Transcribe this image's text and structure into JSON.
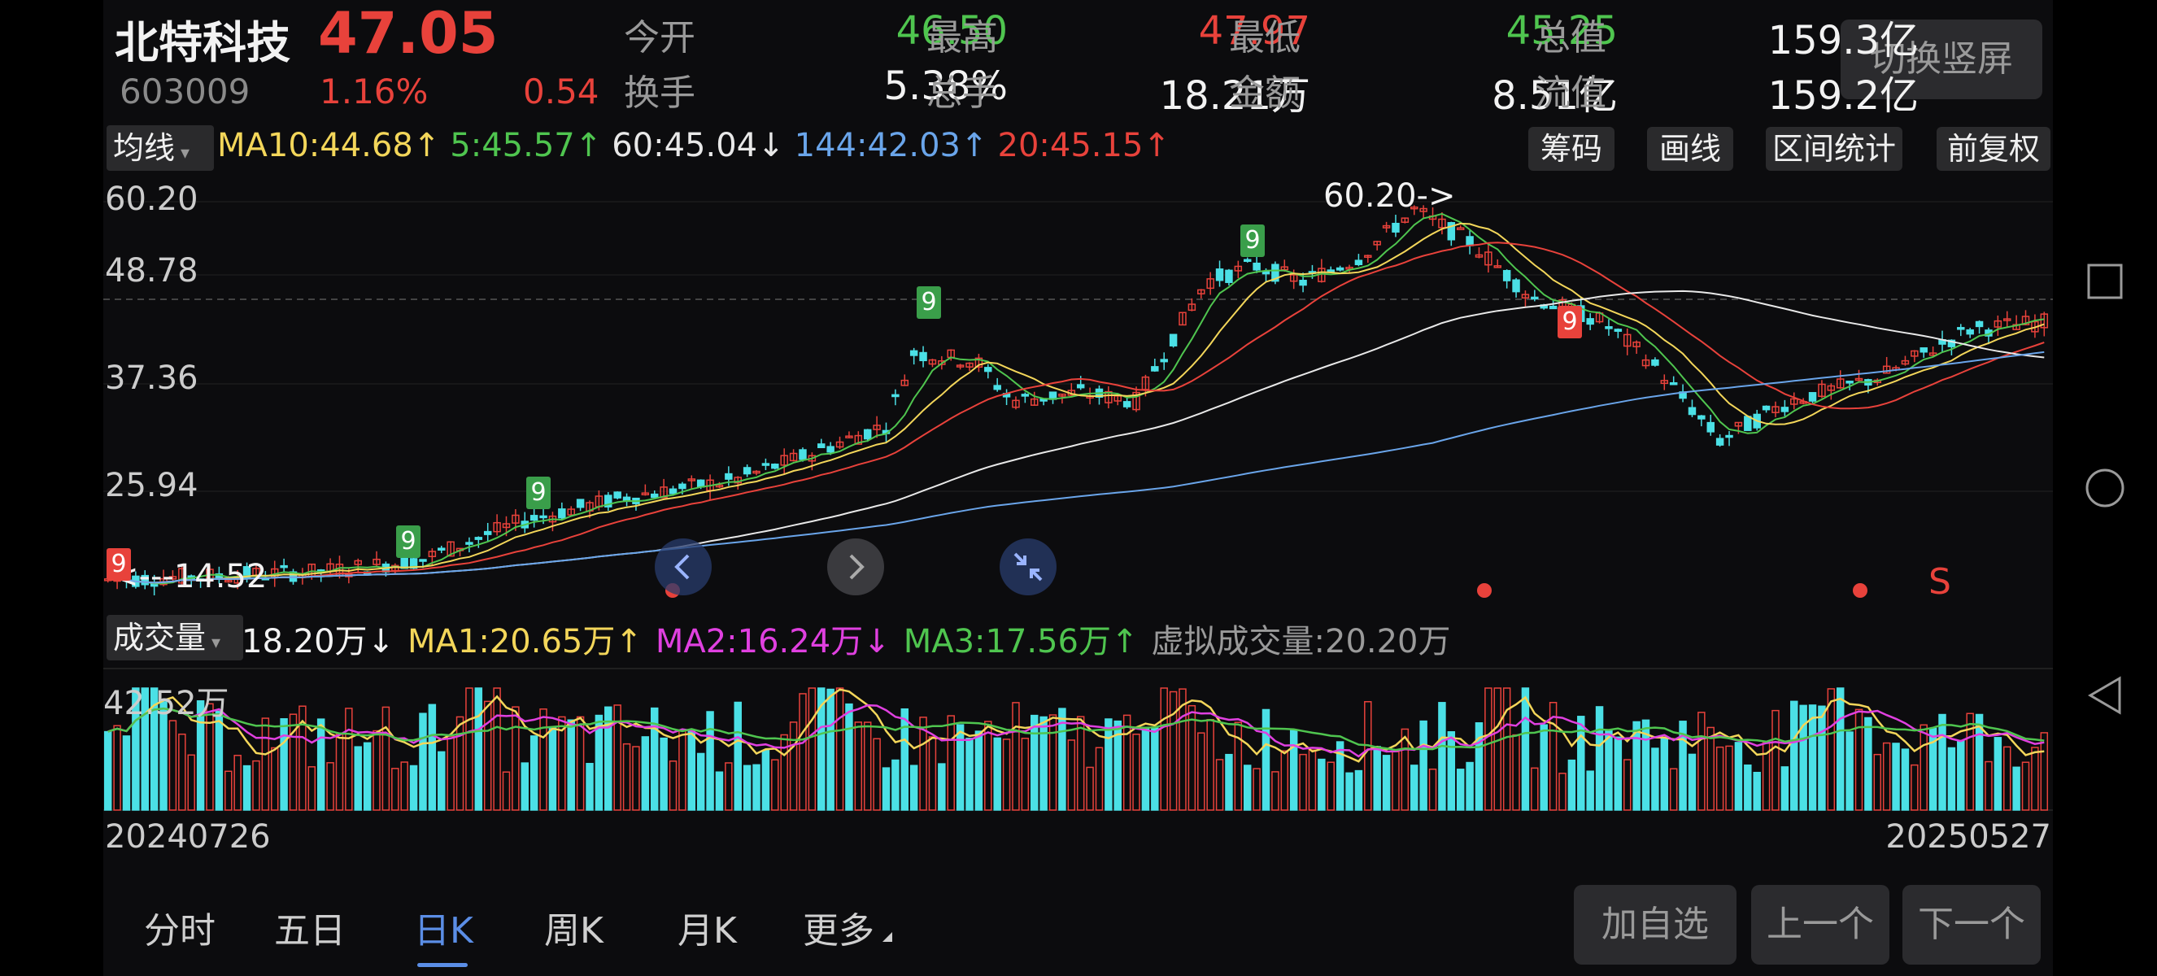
{
  "header": {
    "name": "北特科技",
    "price": "47.05",
    "code": "603009",
    "pct": "1.16%",
    "change": "0.54",
    "row1": [
      {
        "label": "今开",
        "value": "46.50",
        "color": "#4fc54f"
      },
      {
        "label": "最高",
        "value": "47.97",
        "color": "#e8423b"
      },
      {
        "label": "最低",
        "value": "45.25",
        "color": "#4fc54f"
      },
      {
        "label": "总值",
        "value": "159.3亿",
        "color": "#f2f2f2"
      }
    ],
    "row2": [
      {
        "label": "换手",
        "value": "5.38%",
        "color": "#f2f2f2"
      },
      {
        "label": "总手",
        "value": "18.21万",
        "color": "#f2f2f2"
      },
      {
        "label": "金额",
        "value": "8.51亿",
        "color": "#f2f2f2"
      },
      {
        "label": "流值",
        "value": "159.2亿",
        "color": "#f2f2f2"
      }
    ],
    "switch_label": "切换竖屏"
  },
  "ma_bar": {
    "selector": "均线",
    "items": [
      {
        "text": "MA10:44.68↑",
        "color": "#f3d65a"
      },
      {
        "text": "5:45.57↑",
        "color": "#4fc54f"
      },
      {
        "text": "60:45.04↓",
        "color": "#e8e8e8"
      },
      {
        "text": "144:42.03↑",
        "color": "#6aa5ea"
      },
      {
        "text": "20:45.15↑",
        "color": "#e8423b"
      }
    ],
    "tools": [
      "筹码",
      "画线",
      "区间统计",
      "前复权"
    ]
  },
  "price_axis": [
    "60.20",
    "48.78",
    "37.36",
    "25.94"
  ],
  "annotations": {
    "high": "60.20->",
    "low": "<---14.52",
    "signal_s": "S"
  },
  "tags": [
    "9",
    "9",
    "9",
    "9",
    "9",
    "9"
  ],
  "volume_bar": {
    "selector": "成交量",
    "items": [
      {
        "text": "18.20万↓",
        "color": "#f2f2f2"
      },
      {
        "text": "MA1:20.65万↑",
        "color": "#f3d65a"
      },
      {
        "text": "MA2:16.24万↓",
        "color": "#e040e0"
      },
      {
        "text": "MA3:17.56万↑",
        "color": "#4fc54f"
      },
      {
        "text": "虚拟成交量:20.20万",
        "color": "#9a9a9a"
      }
    ],
    "axis_label": "42.52万"
  },
  "dates": {
    "start": "20240726",
    "end": "20250527"
  },
  "tabs": [
    {
      "label": "分时",
      "active": false
    },
    {
      "label": "五日",
      "active": false
    },
    {
      "label": "日K",
      "active": true
    },
    {
      "label": "周K",
      "active": false
    },
    {
      "label": "月K",
      "active": false
    },
    {
      "label": "更多",
      "active": false
    }
  ],
  "actions": [
    "加自选",
    "上一个",
    "下一个"
  ],
  "icons": {
    "nav_left": "chevron-left-icon",
    "nav_right": "chevron-right-icon",
    "collapse": "collapse-icon",
    "square": "recent-apps-icon",
    "circle": "home-icon",
    "triangle": "back-icon"
  },
  "colors": {
    "up": "#e8423b",
    "down": "#4be0e6",
    "ma5": "#4fc54f",
    "ma10": "#f3d65a",
    "ma20": "#e8423b",
    "ma60": "#e8e8e8",
    "ma144": "#6aa5ea"
  }
}
